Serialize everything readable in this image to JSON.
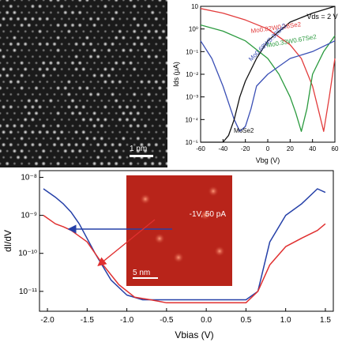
{
  "figure_a": {
    "scale_label": "1 nm"
  },
  "chart_data": [
    {
      "type": "line",
      "xlabel": "Vbg (V)",
      "ylabel": "Ids (μA)",
      "annotation": "Vds = 2 V",
      "xlim": [
        -60,
        60
      ],
      "ylim": [
        1e-05,
        10
      ],
      "log_y": true,
      "x_ticks": [
        "-60",
        "-40",
        "-20",
        "0",
        "20",
        "40",
        "60"
      ],
      "y_ticks": [
        "10",
        "10⁰",
        "10⁻¹",
        "10⁻²",
        "10⁻³",
        "10⁻⁴",
        "10⁻⁵"
      ],
      "series": [
        {
          "name": "Mo0.82W0.18Se2",
          "color": "#e23c3c",
          "x": [
            -60,
            -40,
            -20,
            0,
            20,
            30,
            40,
            45,
            50,
            55,
            60
          ],
          "y": [
            8,
            5,
            2.5,
            1,
            0.2,
            0.05,
            0.003,
            0.0003,
            3e-05,
            0.001,
            0.05
          ]
        },
        {
          "name": "Mo0.33W0.67Se2",
          "color": "#2a9a3e",
          "x": [
            -60,
            -40,
            -20,
            0,
            10,
            20,
            25,
            30,
            35,
            40,
            50,
            60
          ],
          "y": [
            1.5,
            0.8,
            0.3,
            0.05,
            0.01,
            0.001,
            0.0002,
            3e-05,
            0.0003,
            0.01,
            0.1,
            0.5
          ]
        },
        {
          "name": "Mo0.68W0.32Se2",
          "color": "#3a4fb5",
          "x": [
            -60,
            -50,
            -40,
            -30,
            -25,
            -20,
            -15,
            -10,
            0,
            20,
            40,
            60
          ],
          "y": [
            0.3,
            0.05,
            0.003,
            0.0001,
            3e-05,
            5e-05,
            0.0003,
            0.003,
            0.01,
            0.05,
            0.1,
            0.3
          ]
        },
        {
          "name": "MoSe2",
          "color": "#111111",
          "x": [
            -60,
            -50,
            -40,
            -35,
            -30,
            -25,
            -20,
            -10,
            0,
            20,
            40,
            60
          ],
          "y": [
            1e-05,
            1e-05,
            1e-05,
            2e-05,
            0.0001,
            0.001,
            0.005,
            0.05,
            0.3,
            2,
            5,
            10
          ]
        }
      ]
    },
    {
      "type": "line",
      "xlabel": "Vbias (V)",
      "ylabel": "dI/dV",
      "xlim": [
        -2.1,
        1.6
      ],
      "ylim": [
        3e-12,
        1.5e-08
      ],
      "log_y": true,
      "x_ticks": [
        "-2.0",
        "-1.5",
        "-1.0",
        "-0.5",
        "0.0",
        "0.5",
        "1.0",
        "1.5"
      ],
      "y_ticks": [
        "10⁻⁸",
        "10⁻⁹",
        "10⁻¹⁰",
        "10⁻¹¹"
      ],
      "inset_label": "-1V, 50 pA",
      "inset_scale": "5 nm",
      "series": [
        {
          "name": "",
          "color": "#2540a8",
          "x": [
            -2.05,
            -1.9,
            -1.8,
            -1.7,
            -1.6,
            -1.4,
            -1.2,
            -1.0,
            -0.8,
            -0.5,
            0.0,
            0.5,
            0.65,
            0.8,
            1.0,
            1.2,
            1.4,
            1.5
          ],
          "y": [
            5e-09,
            3e-09,
            2e-09,
            1.2e-09,
            6e-10,
            1e-10,
            2e-11,
            8e-12,
            6e-12,
            6e-12,
            6e-12,
            6e-12,
            1e-11,
            2e-10,
            1e-09,
            2e-09,
            5e-09,
            4e-09
          ]
        },
        {
          "name": "",
          "color": "#e03030",
          "x": [
            -2.05,
            -1.9,
            -1.8,
            -1.7,
            -1.5,
            -1.3,
            -1.1,
            -0.9,
            -0.7,
            -0.5,
            0.0,
            0.5,
            0.65,
            0.8,
            1.0,
            1.2,
            1.4,
            1.5
          ],
          "y": [
            1e-09,
            6e-10,
            5e-10,
            4e-10,
            2e-10,
            5e-11,
            1.5e-11,
            7e-12,
            6e-12,
            5e-12,
            5e-12,
            5e-12,
            1e-11,
            5e-11,
            1.5e-10,
            2.5e-10,
            4e-10,
            6e-10
          ]
        }
      ]
    }
  ]
}
